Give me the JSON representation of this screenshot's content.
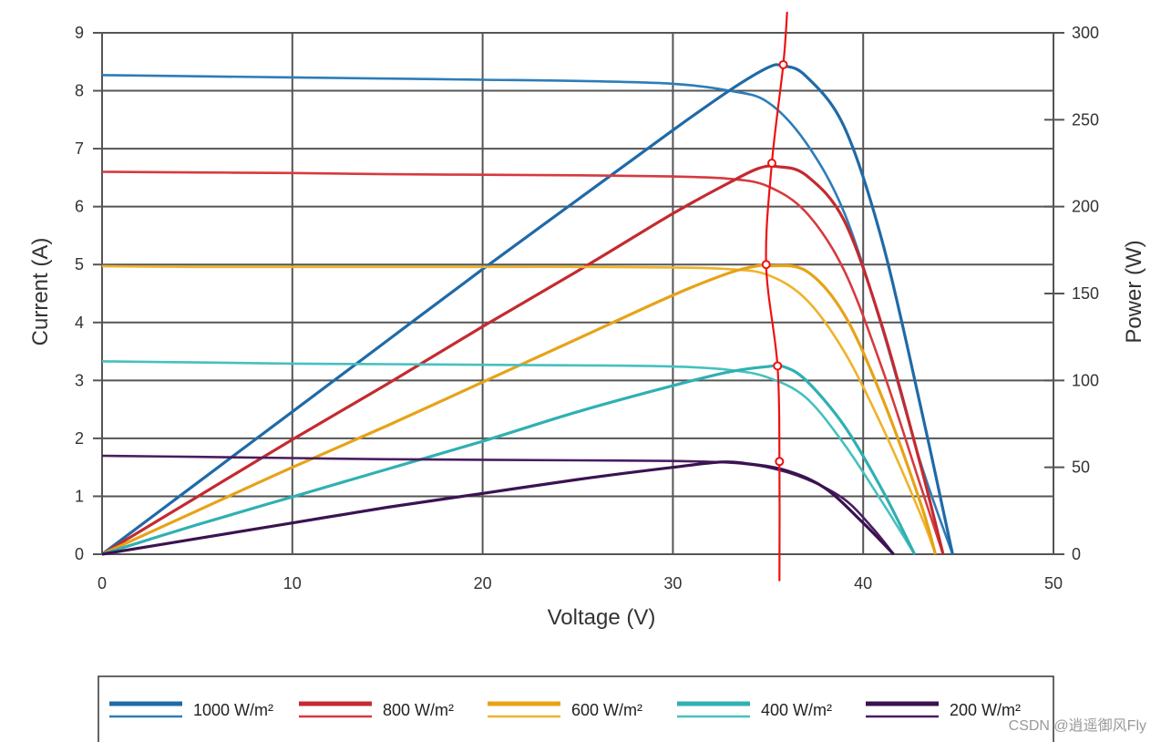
{
  "chart_data": {
    "type": "line",
    "x_axis": {
      "label": "Voltage (V)",
      "range": [
        0,
        50
      ],
      "ticks": [
        "0",
        "10",
        "20",
        "30",
        "40",
        "50"
      ],
      "tick_values": [
        0,
        10,
        20,
        30,
        40,
        50
      ]
    },
    "y_axis_left": {
      "label": "Current (A)",
      "range": [
        0,
        9
      ],
      "ticks": [
        "0",
        "1",
        "2",
        "3",
        "4",
        "5",
        "6",
        "7",
        "8",
        "9"
      ],
      "tick_values": [
        0,
        1,
        2,
        3,
        4,
        5,
        6,
        7,
        8,
        9
      ]
    },
    "y_axis_right": {
      "label": "Power (W)",
      "range": [
        0,
        300
      ],
      "ticks": [
        "0",
        "50",
        "100",
        "150",
        "200",
        "250",
        "300"
      ],
      "tick_values": [
        0,
        50,
        100,
        150,
        200,
        250,
        300
      ]
    },
    "grid": true,
    "series": [
      {
        "name": "1000 W/m²",
        "color_iv": "#2e7cb8",
        "color_pv": "#1f6aa8",
        "iv": {
          "x": [
            0,
            5,
            10,
            15,
            20,
            25,
            30,
            33,
            35,
            37,
            39,
            41,
            43,
            44.7
          ],
          "y": [
            8.27,
            8.25,
            8.23,
            8.21,
            8.19,
            8.17,
            8.12,
            8.0,
            7.8,
            7.1,
            5.9,
            3.9,
            1.6,
            0
          ]
        },
        "pv": {
          "x": [
            0,
            5,
            10,
            15,
            20,
            25,
            30,
            33,
            35,
            35.8,
            37,
            39,
            41,
            43,
            44.7
          ],
          "y": [
            0,
            41,
            82,
            123,
            164,
            204,
            244,
            267,
            280,
            281,
            275,
            246,
            180,
            86,
            0
          ]
        }
      },
      {
        "name": "800 W/m²",
        "color_iv": "#d63a3f",
        "color_pv": "#c42a30",
        "iv": {
          "x": [
            0,
            5,
            10,
            15,
            20,
            25,
            30,
            33,
            35,
            37,
            39,
            41,
            43,
            44.2
          ],
          "y": [
            6.6,
            6.59,
            6.58,
            6.56,
            6.55,
            6.54,
            6.52,
            6.48,
            6.35,
            5.9,
            4.9,
            3.2,
            1.2,
            0
          ]
        },
        "pv": {
          "x": [
            0,
            5,
            10,
            15,
            20,
            25,
            30,
            33,
            34.5,
            35.5,
            37,
            39,
            41,
            43,
            44.2
          ],
          "y": [
            0,
            33,
            66,
            98,
            131,
            163,
            196,
            214,
            222,
            223,
            218,
            192,
            131,
            52,
            0
          ]
        }
      },
      {
        "name": "600 W/m²",
        "color_iv": "#f0b22a",
        "color_pv": "#e6a317",
        "iv": {
          "x": [
            0,
            5,
            10,
            15,
            20,
            25,
            30,
            33,
            35,
            37,
            39,
            41,
            43,
            43.8
          ],
          "y": [
            4.97,
            4.96,
            4.96,
            4.96,
            4.96,
            4.96,
            4.95,
            4.92,
            4.82,
            4.4,
            3.5,
            2.2,
            0.7,
            0
          ]
        },
        "pv": {
          "x": [
            0,
            5,
            10,
            15,
            20,
            25,
            30,
            33,
            34.5,
            35,
            37,
            39,
            41,
            43,
            43.8
          ],
          "y": [
            0,
            25,
            50,
            74,
            99,
            124,
            149,
            162,
            166,
            166,
            163,
            138,
            90,
            30,
            0
          ]
        }
      },
      {
        "name": "400 W/m²",
        "color_iv": "#46c0c0",
        "color_pv": "#2fb0b3",
        "iv": {
          "x": [
            0,
            5,
            10,
            15,
            20,
            25,
            30,
            33,
            35,
            37,
            39,
            41,
            42.7
          ],
          "y": [
            3.33,
            3.31,
            3.29,
            3.28,
            3.27,
            3.26,
            3.24,
            3.18,
            3.05,
            2.7,
            1.9,
            0.9,
            0
          ]
        },
        "pv": {
          "x": [
            0,
            5,
            10,
            15,
            20,
            25,
            30,
            33,
            35,
            35.8,
            37,
            39,
            41,
            42.7
          ],
          "y": [
            0,
            17,
            33,
            49,
            65,
            82,
            97,
            105,
            108,
            108,
            100,
            74,
            37,
            0
          ]
        }
      },
      {
        "name": "200 W/m²",
        "color_iv": "#4a1d5e",
        "color_pv": "#3a1350",
        "iv": {
          "x": [
            0,
            5,
            10,
            15,
            20,
            25,
            30,
            33,
            35,
            37,
            39,
            40.5,
            41.6
          ],
          "y": [
            1.7,
            1.68,
            1.66,
            1.64,
            1.63,
            1.62,
            1.61,
            1.58,
            1.5,
            1.3,
            0.95,
            0.45,
            0
          ]
        },
        "pv": {
          "x": [
            0,
            5,
            10,
            15,
            20,
            25,
            30,
            32.5,
            34,
            36,
            38,
            40,
            41.6
          ],
          "y": [
            0,
            9,
            18,
            27,
            35,
            43,
            50,
            53,
            52,
            48,
            38,
            18,
            0
          ]
        }
      }
    ],
    "annotation": {
      "type": "freehand-line",
      "color": "#ee1111",
      "description_points": [
        {
          "x": 36.0,
          "y": 9.35
        },
        {
          "x": 35.8,
          "y": 8.45
        },
        {
          "x": 35.2,
          "y": 6.75
        },
        {
          "x": 34.9,
          "y": 5.0
        },
        {
          "x": 35.5,
          "y": 3.25
        },
        {
          "x": 35.6,
          "y": 1.6
        },
        {
          "x": 35.6,
          "y": -0.45
        }
      ],
      "markers": [
        {
          "x": 35.8,
          "y": 8.45
        },
        {
          "x": 35.2,
          "y": 6.75
        },
        {
          "x": 34.9,
          "y": 5.0
        },
        {
          "x": 35.5,
          "y": 3.25
        },
        {
          "x": 35.6,
          "y": 1.6
        }
      ]
    },
    "legend": {
      "placement": "bottom",
      "entries": [
        "1000 W/m²",
        "800 W/m²",
        "600 W/m²",
        "400 W/m²",
        "200 W/m²"
      ]
    }
  },
  "watermark": "CSDN @逍遥御风Fly"
}
